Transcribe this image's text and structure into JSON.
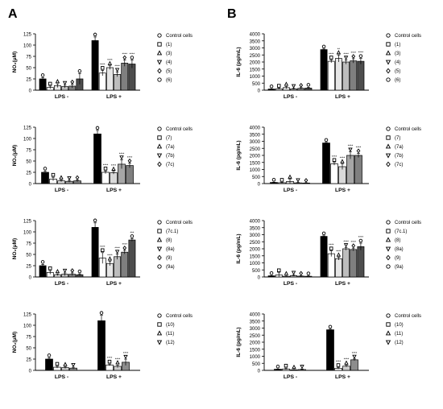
{
  "panel_labels": [
    "A",
    "B"
  ],
  "chart_data": [
    {
      "type": "bar",
      "panel": "A",
      "row": 1,
      "ylabel": "NO₂(μM)",
      "ylim": [
        0,
        125
      ],
      "yticks": [
        0,
        25,
        50,
        75,
        100,
        125
      ],
      "group_labels": [
        "LPS -",
        "LPS +"
      ],
      "legend": [
        "Control cells",
        "(1)",
        "(3)",
        "(4)",
        "(5)",
        "(6)"
      ],
      "series": [
        {
          "name": "Control cells",
          "values": [
            25,
            110
          ],
          "errors": [
            3,
            8
          ],
          "stars": [
            "",
            ""
          ]
        },
        {
          "name": "(1)",
          "values": [
            6,
            38
          ],
          "errors": [
            3,
            6
          ],
          "stars": [
            "",
            "****"
          ]
        },
        {
          "name": "(3)",
          "values": [
            10,
            50
          ],
          "errors": [
            4,
            4
          ],
          "stars": [
            "",
            "****"
          ]
        },
        {
          "name": "(4)",
          "values": [
            8,
            35
          ],
          "errors": [
            3,
            5
          ],
          "stars": [
            "",
            "****"
          ]
        },
        {
          "name": "(5)",
          "values": [
            9,
            60
          ],
          "errors": [
            4,
            7
          ],
          "stars": [
            "",
            "****"
          ]
        },
        {
          "name": "(6)",
          "values": [
            25,
            58
          ],
          "errors": [
            12,
            9
          ],
          "stars": [
            "",
            "****"
          ]
        }
      ]
    },
    {
      "type": "bar",
      "panel": "A",
      "row": 2,
      "ylabel": "NO₂(μM)",
      "ylim": [
        0,
        125
      ],
      "yticks": [
        0,
        25,
        50,
        75,
        100,
        125
      ],
      "group_labels": [
        "LPS -",
        "LPS +"
      ],
      "legend": [
        "Control cells",
        "(7)",
        "(7a)",
        "(7b)",
        "(7c)"
      ],
      "series": [
        {
          "name": "Control cells",
          "values": [
            25,
            110
          ],
          "errors": [
            3,
            8
          ],
          "stars": [
            "",
            ""
          ]
        },
        {
          "name": "(7)",
          "values": [
            10,
            25
          ],
          "errors": [
            4,
            3
          ],
          "stars": [
            "",
            "****"
          ]
        },
        {
          "name": "(7a)",
          "values": [
            6,
            24
          ],
          "errors": [
            2,
            3
          ],
          "stars": [
            "",
            "****"
          ]
        },
        {
          "name": "(7b)",
          "values": [
            5,
            43
          ],
          "errors": [
            2,
            10
          ],
          "stars": [
            "",
            "****"
          ]
        },
        {
          "name": "(7c)",
          "values": [
            6,
            40
          ],
          "errors": [
            2,
            5
          ],
          "stars": [
            "",
            "****"
          ]
        }
      ]
    },
    {
      "type": "bar",
      "panel": "A",
      "row": 3,
      "ylabel": "NO₂(μM)",
      "ylim": [
        0,
        125
      ],
      "yticks": [
        0,
        25,
        50,
        75,
        100,
        125
      ],
      "group_labels": [
        "LPS -",
        "LPS +"
      ],
      "legend": [
        "Control cells",
        "(7c.1)",
        "(8)",
        "(8a)",
        "(9)",
        "(9a)"
      ],
      "series": [
        {
          "name": "Control cells",
          "values": [
            25,
            110
          ],
          "errors": [
            3,
            10
          ],
          "stars": [
            "",
            ""
          ]
        },
        {
          "name": "(7c.1)",
          "values": [
            10,
            42
          ],
          "errors": [
            4,
            12
          ],
          "stars": [
            "",
            "****"
          ]
        },
        {
          "name": "(8)",
          "values": [
            5,
            30
          ],
          "errors": [
            2,
            5
          ],
          "stars": [
            "",
            "****"
          ]
        },
        {
          "name": "(8a)",
          "values": [
            6,
            45
          ],
          "errors": [
            3,
            6
          ],
          "stars": [
            "",
            "****"
          ]
        },
        {
          "name": "(9)",
          "values": [
            6,
            55
          ],
          "errors": [
            3,
            4
          ],
          "stars": [
            "",
            "****"
          ]
        },
        {
          "name": "(9a)",
          "values": [
            5,
            82
          ],
          "errors": [
            2,
            3
          ],
          "stars": [
            "",
            "***"
          ]
        }
      ]
    },
    {
      "type": "bar",
      "panel": "A",
      "row": 4,
      "ylabel": "NO₂(μM)",
      "ylim": [
        0,
        125
      ],
      "yticks": [
        0,
        25,
        50,
        75,
        100,
        125
      ],
      "group_labels": [
        "LPS -",
        "LPS +"
      ],
      "legend": [
        "Control cells",
        "(10)",
        "(11)",
        "(12)"
      ],
      "series": [
        {
          "name": "Control cells",
          "values": [
            25,
            110
          ],
          "errors": [
            3,
            12
          ],
          "stars": [
            "",
            ""
          ]
        },
        {
          "name": "(10)",
          "values": [
            7,
            12
          ],
          "errors": [
            2,
            2
          ],
          "stars": [
            "",
            "****"
          ]
        },
        {
          "name": "(11)",
          "values": [
            6,
            9
          ],
          "errors": [
            2,
            3
          ],
          "stars": [
            "",
            "****"
          ]
        },
        {
          "name": "(12)",
          "values": [
            5,
            18
          ],
          "errors": [
            2,
            7
          ],
          "stars": [
            "",
            "****"
          ]
        }
      ]
    },
    {
      "type": "bar",
      "panel": "B",
      "row": 1,
      "ylabel": "IL-6 (pg/mL)",
      "ylim": [
        0,
        4000
      ],
      "yticks": [
        0,
        500,
        1000,
        1500,
        2000,
        2500,
        3000,
        3500,
        4000
      ],
      "group_labels": [
        "LPS -",
        "LPS +"
      ],
      "legend": [
        "Control cells",
        "(1)",
        "(3)",
        "(4)",
        "(5)",
        "(6)"
      ],
      "series": [
        {
          "name": "Control cells",
          "values": [
            80,
            2880
          ],
          "errors": [
            20,
            40
          ],
          "stars": [
            "",
            ""
          ]
        },
        {
          "name": "(1)",
          "values": [
            100,
            2050
          ],
          "errors": [
            40,
            100
          ],
          "stars": [
            "",
            "****"
          ]
        },
        {
          "name": "(3)",
          "values": [
            180,
            2250
          ],
          "errors": [
            80,
            250
          ],
          "stars": [
            "",
            "**"
          ]
        },
        {
          "name": "(4)",
          "values": [
            90,
            2000
          ],
          "errors": [
            40,
            150
          ],
          "stars": [
            "",
            "****"
          ]
        },
        {
          "name": "(5)",
          "values": [
            130,
            2080
          ],
          "errors": [
            50,
            150
          ],
          "stars": [
            "",
            "****"
          ]
        },
        {
          "name": "(6)",
          "values": [
            150,
            2050
          ],
          "errors": [
            60,
            200
          ],
          "stars": [
            "",
            "****"
          ]
        }
      ]
    },
    {
      "type": "bar",
      "panel": "B",
      "row": 2,
      "ylabel": "IL-6 (pg/mL)",
      "ylim": [
        0,
        4000
      ],
      "yticks": [
        0,
        500,
        1000,
        1500,
        2000,
        2500,
        3000,
        3500,
        4000
      ],
      "group_labels": [
        "LPS -",
        "LPS +"
      ],
      "legend": [
        "Control cells",
        "(7)",
        "(7a)",
        "(7b)",
        "(7c)"
      ],
      "series": [
        {
          "name": "Control cells",
          "values": [
            80,
            2880
          ],
          "errors": [
            20,
            40
          ],
          "stars": [
            "",
            ""
          ]
        },
        {
          "name": "(7)",
          "values": [
            60,
            1400
          ],
          "errors": [
            30,
            100
          ],
          "stars": [
            "",
            "****"
          ]
        },
        {
          "name": "(7a)",
          "values": [
            150,
            1200
          ],
          "errors": [
            150,
            200
          ],
          "stars": [
            "",
            "****"
          ]
        },
        {
          "name": "(7b)",
          "values": [
            50,
            2000
          ],
          "errors": [
            30,
            250
          ],
          "stars": [
            "",
            "****"
          ]
        },
        {
          "name": "(7c)",
          "values": [
            40,
            2000
          ],
          "errors": [
            20,
            150
          ],
          "stars": [
            "",
            "****"
          ]
        }
      ]
    },
    {
      "type": "bar",
      "panel": "B",
      "row": 3,
      "ylabel": "IL-6 (pg/mL)",
      "ylim": [
        0,
        4000
      ],
      "yticks": [
        0,
        500,
        1000,
        1500,
        2000,
        2500,
        3000,
        3500,
        4000
      ],
      "group_labels": [
        "LPS -",
        "LPS +"
      ],
      "legend": [
        "Control cells",
        "(7c.1)",
        "(8)",
        "(8a)",
        "(9)",
        "(9a)"
      ],
      "series": [
        {
          "name": "Control cells",
          "values": [
            80,
            2880
          ],
          "errors": [
            20,
            40
          ],
          "stars": [
            "",
            ""
          ]
        },
        {
          "name": "(7c.1)",
          "values": [
            150,
            1650
          ],
          "errors": [
            150,
            200
          ],
          "stars": [
            "",
            "****"
          ]
        },
        {
          "name": "(8)",
          "values": [
            50,
            1300
          ],
          "errors": [
            30,
            100
          ],
          "stars": [
            "",
            "****"
          ]
        },
        {
          "name": "(8a)",
          "values": [
            100,
            2000
          ],
          "errors": [
            40,
            100
          ],
          "stars": [
            "",
            "****"
          ]
        },
        {
          "name": "(9)",
          "values": [
            60,
            1950
          ],
          "errors": [
            30,
            100
          ],
          "stars": [
            "",
            "****"
          ]
        },
        {
          "name": "(9a)",
          "values": [
            50,
            2150
          ],
          "errors": [
            30,
            250
          ],
          "stars": [
            "",
            "****"
          ]
        }
      ]
    },
    {
      "type": "bar",
      "panel": "B",
      "row": 4,
      "ylabel": "IL-6 (pg/mL)",
      "ylim": [
        0,
        4000
      ],
      "yticks": [
        0,
        500,
        1000,
        1500,
        2000,
        2500,
        3000,
        3500,
        4000
      ],
      "group_labels": [
        "LPS -",
        "LPS +"
      ],
      "legend": [
        "Control cells",
        "(10)",
        "(11)",
        "(12)"
      ],
      "series": [
        {
          "name": "Control cells",
          "values": [
            80,
            2880
          ],
          "errors": [
            20,
            40
          ],
          "stars": [
            "",
            ""
          ]
        },
        {
          "name": "(10)",
          "values": [
            100,
            150
          ],
          "errors": [
            60,
            50
          ],
          "stars": [
            "",
            "****"
          ]
        },
        {
          "name": "(11)",
          "values": [
            40,
            300
          ],
          "errors": [
            20,
            60
          ],
          "stars": [
            "",
            "****"
          ]
        },
        {
          "name": "(12)",
          "values": [
            60,
            750
          ],
          "errors": [
            40,
            60
          ],
          "stars": [
            "",
            "****"
          ]
        }
      ]
    }
  ]
}
